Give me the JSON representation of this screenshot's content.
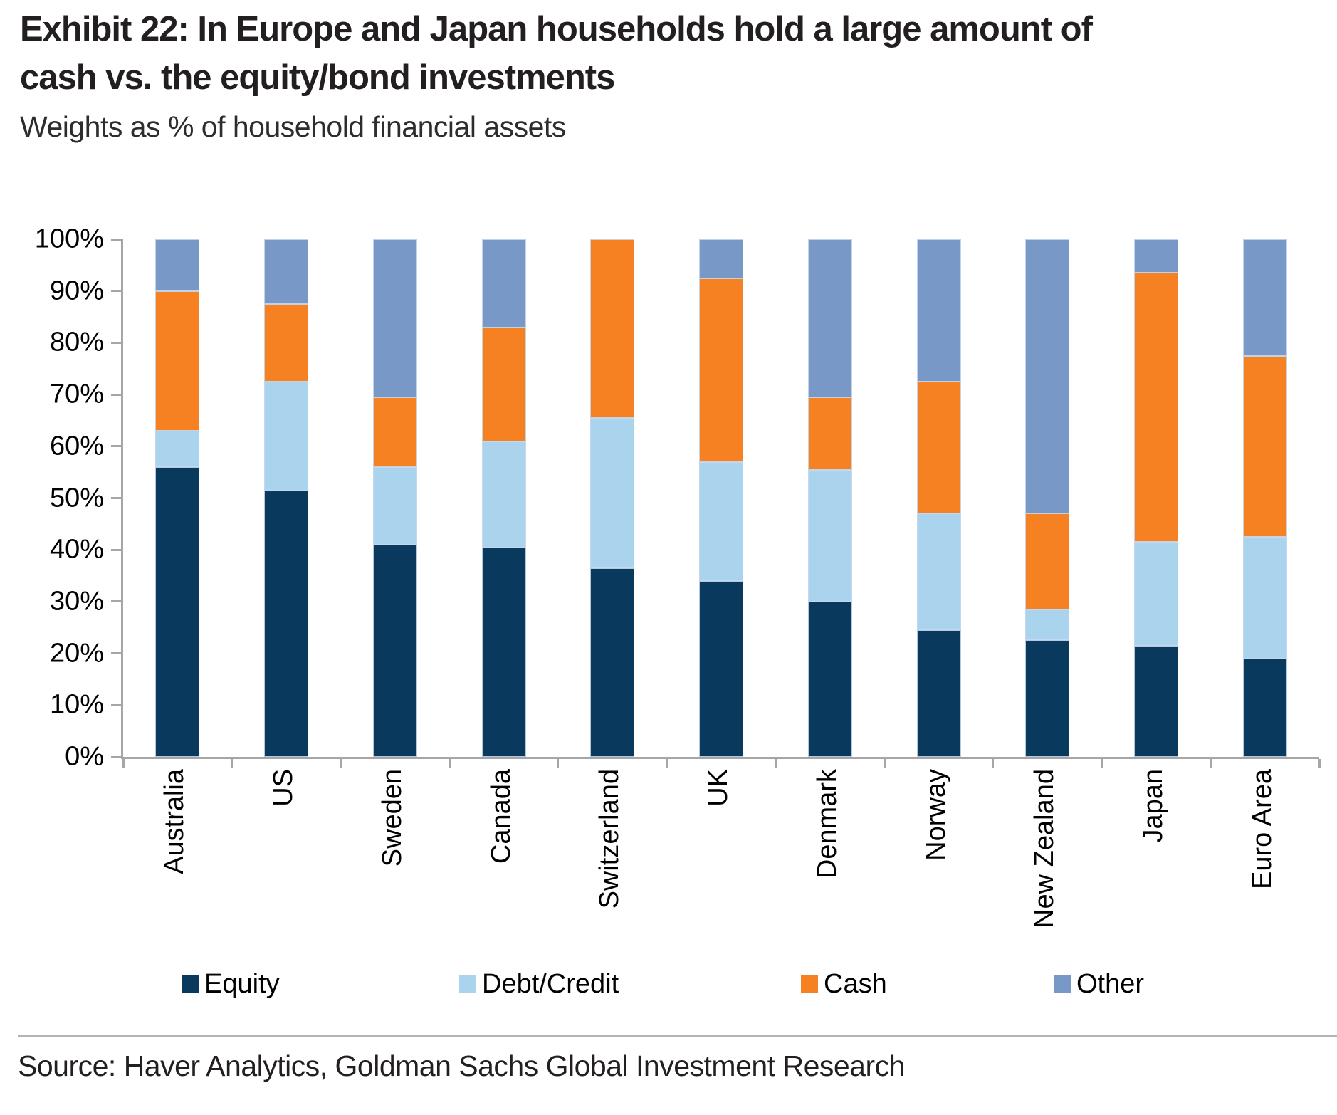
{
  "header": {
    "title": "Exhibit 22: In Europe and Japan households hold a large amount of cash vs. the equity/bond investments",
    "subtitle": "Weights as % of household financial assets"
  },
  "source": "Source: Haver Analytics, Goldman Sachs Global Investment Research",
  "chart_data": {
    "type": "bar",
    "stacked": true,
    "title": "Exhibit 22: In Europe and Japan households hold a large amount of cash vs. the equity/bond investments",
    "subtitle": "Weights as % of household financial assets",
    "xlabel": "",
    "ylabel": "",
    "ylim": [
      0,
      100
    ],
    "grid": false,
    "legend_position": "bottom",
    "yticklabels": [
      "100%",
      "90%",
      "80%",
      "70%",
      "60%",
      "50%",
      "40%",
      "30%",
      "20%",
      "10%",
      "0%"
    ],
    "categories": [
      "Australia",
      "US",
      "Sweden",
      "Canada",
      "Switzerland",
      "UK",
      "Denmark",
      "Norway",
      "New Zealand",
      "Japan",
      "Euro Area"
    ],
    "series": [
      {
        "name": "Equity",
        "color": "#093a5d",
        "values": [
          56,
          51.5,
          41,
          40.5,
          36.5,
          34,
          30,
          24.5,
          22.5,
          21.5,
          19
        ]
      },
      {
        "name": "Debt/Credit",
        "color": "#aad3ee",
        "values": [
          7,
          21,
          15,
          20.5,
          29,
          23,
          25.5,
          22.5,
          6,
          20,
          23.5
        ]
      },
      {
        "name": "Cash",
        "color": "#f68122",
        "values": [
          27,
          15,
          13.5,
          22,
          34.5,
          35.5,
          14,
          25.5,
          18.5,
          52,
          35
        ]
      },
      {
        "name": "Other",
        "color": "#7899c7",
        "values": [
          10,
          12.5,
          30.5,
          17,
          0,
          7.5,
          30.5,
          27.5,
          53,
          6.5,
          22.5
        ]
      }
    ],
    "axis_color": "#a6a6a6"
  }
}
